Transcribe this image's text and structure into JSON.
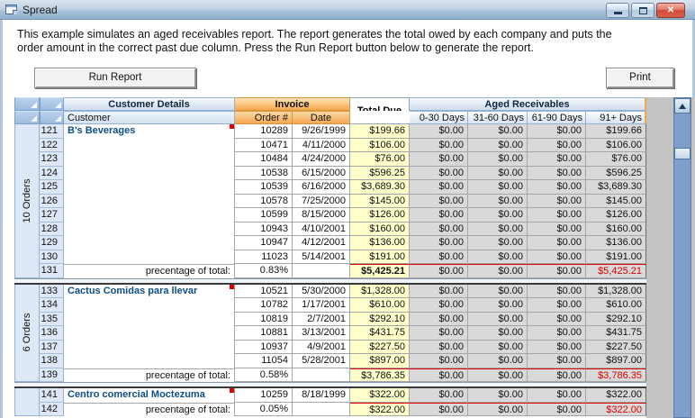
{
  "window": {
    "title": "Spread"
  },
  "description": {
    "lines": [
      "This example simulates an aged receivables report.  The report generates the total owed by each company and puts the",
      "order amount in the correct past due column. Press the Run Report button below to generate the report."
    ]
  },
  "toolbar": {
    "run_report": "Run Report",
    "print": "Print"
  },
  "grid": {
    "headers": {
      "customer_details": "Customer Details",
      "invoice": "Invoice",
      "total_due": "Total Due",
      "aged_receivables": "Aged Receivables",
      "customer": "Customer",
      "order_num": "Order #",
      "date": "Date",
      "aged_cols": [
        "0-30 Days",
        "31-60 Days",
        "61-90 Days",
        "91+ Days"
      ]
    },
    "groups": [
      {
        "orders_label": "10 Orders",
        "customer": "B's Beverages",
        "rows": [
          {
            "num": "121",
            "order": "10289",
            "date": "9/26/1999",
            "total": "$199.66",
            "aged": [
              "$0.00",
              "$0.00",
              "$0.00",
              "$199.66"
            ]
          },
          {
            "num": "122",
            "order": "10471",
            "date": "4/11/2000",
            "total": "$106.00",
            "aged": [
              "$0.00",
              "$0.00",
              "$0.00",
              "$106.00"
            ]
          },
          {
            "num": "123",
            "order": "10484",
            "date": "4/24/2000",
            "total": "$76.00",
            "aged": [
              "$0.00",
              "$0.00",
              "$0.00",
              "$76.00"
            ]
          },
          {
            "num": "124",
            "order": "10538",
            "date": "6/15/2000",
            "total": "$596.25",
            "aged": [
              "$0.00",
              "$0.00",
              "$0.00",
              "$596.25"
            ]
          },
          {
            "num": "125",
            "order": "10539",
            "date": "6/16/2000",
            "total": "$3,689.30",
            "aged": [
              "$0.00",
              "$0.00",
              "$0.00",
              "$3,689.30"
            ]
          },
          {
            "num": "126",
            "order": "10578",
            "date": "7/25/2000",
            "total": "$145.00",
            "aged": [
              "$0.00",
              "$0.00",
              "$0.00",
              "$145.00"
            ]
          },
          {
            "num": "127",
            "order": "10599",
            "date": "8/15/2000",
            "total": "$126.00",
            "aged": [
              "$0.00",
              "$0.00",
              "$0.00",
              "$126.00"
            ]
          },
          {
            "num": "128",
            "order": "10943",
            "date": "4/10/2001",
            "total": "$160.00",
            "aged": [
              "$0.00",
              "$0.00",
              "$0.00",
              "$160.00"
            ]
          },
          {
            "num": "129",
            "order": "10947",
            "date": "4/12/2001",
            "total": "$136.00",
            "aged": [
              "$0.00",
              "$0.00",
              "$0.00",
              "$136.00"
            ]
          },
          {
            "num": "130",
            "order": "11023",
            "date": "5/14/2001",
            "total": "$191.00",
            "aged": [
              "$0.00",
              "$0.00",
              "$0.00",
              "$191.00"
            ]
          }
        ],
        "total_row": {
          "num": "131",
          "label": "precentage of total:",
          "pct": "0.83%",
          "total": "$5,425.21",
          "aged": [
            "$0.00",
            "$0.00",
            "$0.00",
            "$5,425.21"
          ],
          "bold_total": true
        }
      },
      {
        "orders_label": "6 Orders",
        "customer": "Cactus Comidas para llevar",
        "rows": [
          {
            "num": "133",
            "order": "10521",
            "date": "5/30/2000",
            "total": "$1,328.00",
            "aged": [
              "$0.00",
              "$0.00",
              "$0.00",
              "$1,328.00"
            ]
          },
          {
            "num": "134",
            "order": "10782",
            "date": "1/17/2001",
            "total": "$610.00",
            "aged": [
              "$0.00",
              "$0.00",
              "$0.00",
              "$610.00"
            ]
          },
          {
            "num": "135",
            "order": "10819",
            "date": "2/7/2001",
            "total": "$292.10",
            "aged": [
              "$0.00",
              "$0.00",
              "$0.00",
              "$292.10"
            ]
          },
          {
            "num": "136",
            "order": "10881",
            "date": "3/13/2001",
            "total": "$431.75",
            "aged": [
              "$0.00",
              "$0.00",
              "$0.00",
              "$431.75"
            ]
          },
          {
            "num": "137",
            "order": "10937",
            "date": "4/9/2001",
            "total": "$227.50",
            "aged": [
              "$0.00",
              "$0.00",
              "$0.00",
              "$227.50"
            ]
          },
          {
            "num": "138",
            "order": "11054",
            "date": "5/28/2001",
            "total": "$897.00",
            "aged": [
              "$0.00",
              "$0.00",
              "$0.00",
              "$897.00"
            ]
          }
        ],
        "total_row": {
          "num": "139",
          "label": "precentage of total:",
          "pct": "0.58%",
          "total": "$3,786.35",
          "aged": [
            "$0.00",
            "$0.00",
            "$0.00",
            "$3,786.35"
          ],
          "bold_total": false
        }
      },
      {
        "orders_label": "",
        "customer": "Centro comercial Moctezuma",
        "rows": [
          {
            "num": "141",
            "order": "10259",
            "date": "8/18/1999",
            "total": "$322.00",
            "aged": [
              "$0.00",
              "$0.00",
              "$0.00",
              "$322.00"
            ]
          }
        ],
        "total_row": {
          "num": "142",
          "label": "precentage of total:",
          "pct": "0.05%",
          "total": "$322.00",
          "aged": [
            "$0.00",
            "$0.00",
            "$0.00",
            "$322.00"
          ],
          "bold_total": false
        }
      }
    ]
  },
  "colors": {
    "invoice_header_orange": "#f5a94e",
    "header_blue": "#cfddee",
    "row_header_blue": "#dde7f5",
    "total_due_yellow": "#ffffcc",
    "aged_gray": "#d9d9d9",
    "customer_name_blue": "#0d4f85",
    "alert_red": "#e00000",
    "scrollbar_blue": "#7e9fc9",
    "close_button_red": "#cc4a38"
  }
}
